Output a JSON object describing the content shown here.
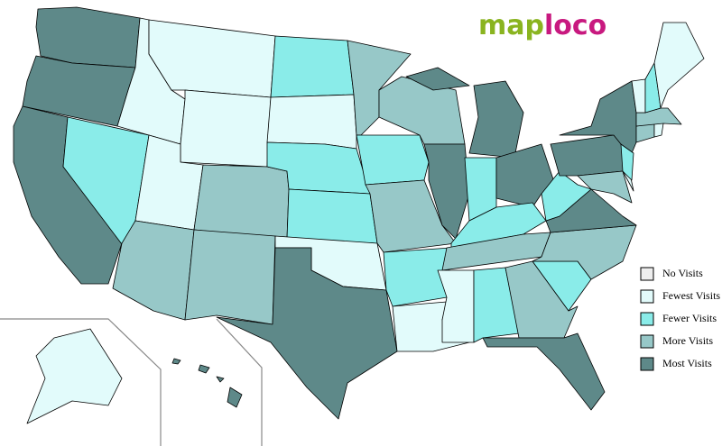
{
  "logo": {
    "left": "map",
    "right": "loco"
  },
  "legend": [
    {
      "label": "No Visits",
      "color": "#eeeeee"
    },
    {
      "label": "Fewest Visits",
      "color": "#e2fbfb"
    },
    {
      "label": "Fewer Visits",
      "color": "#8aece9"
    },
    {
      "label": "More Visits",
      "color": "#97c8c8"
    },
    {
      "label": "Most Visits",
      "color": "#5e8989"
    }
  ],
  "regions": [
    {
      "color": "#5e8989"
    },
    {
      "color": "#5e8989"
    },
    {
      "color": "#5e8989"
    },
    {
      "color": "#8aece9"
    },
    {
      "color": "#e2fbfb"
    },
    {
      "color": "#e2fbfb"
    },
    {
      "color": "#e2fbfb"
    },
    {
      "color": "#e2fbfb"
    },
    {
      "color": "#97c8c8"
    },
    {
      "color": "#97c8c8"
    },
    {
      "color": "#97c8c8"
    },
    {
      "color": "#8aece9"
    },
    {
      "color": "#e2fbfb"
    },
    {
      "color": "#8aece9"
    },
    {
      "color": "#8aece9"
    },
    {
      "color": "#e2fbfb"
    },
    {
      "color": "#5e8989"
    },
    {
      "color": "#97c8c8"
    },
    {
      "color": "#8aece9"
    },
    {
      "color": "#97c8c8"
    },
    {
      "color": "#8aece9"
    },
    {
      "color": "#e2fbfb"
    },
    {
      "color": "#97c8c8"
    },
    {
      "color": "#5e8989"
    },
    {
      "color": "#5e8989"
    },
    {
      "color": "#8aece9"
    },
    {
      "color": "#5e8989"
    },
    {
      "color": "#8aece9"
    },
    {
      "color": "#97c8c8"
    },
    {
      "color": "#e2fbfb"
    },
    {
      "color": "#8aece9"
    },
    {
      "color": "#97c8c8"
    },
    {
      "color": "#5e8989"
    },
    {
      "color": "#8aece9"
    },
    {
      "color": "#97c8c8"
    },
    {
      "color": "#5e8989"
    },
    {
      "color": "#8aece9"
    },
    {
      "color": "#5e8989"
    },
    {
      "color": "#5e8989"
    },
    {
      "color": "#97c8c8"
    },
    {
      "color": "#e2fbfb"
    },
    {
      "color": "#8aece9"
    },
    {
      "color": "#97c8c8"
    },
    {
      "color": "#e2fbfb"
    },
    {
      "color": "#97c8c8"
    },
    {
      "color": "#e2fbfb"
    },
    {
      "color": "#8aece9"
    },
    {
      "color": "#e2fbfb"
    },
    {
      "color": "#e2fbfb"
    },
    {
      "color": "#5e8989"
    }
  ]
}
